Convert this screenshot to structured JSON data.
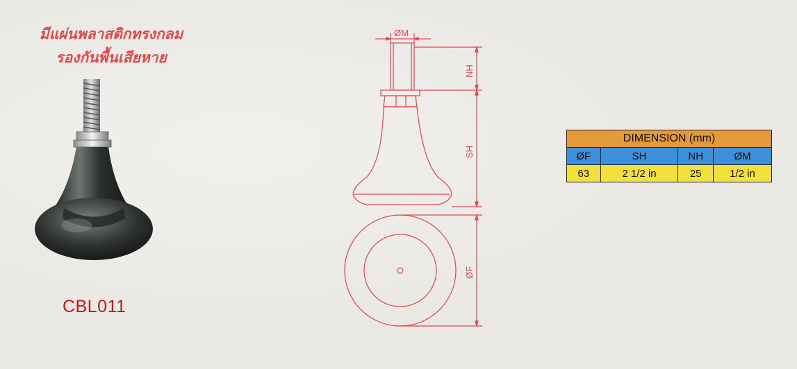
{
  "note": {
    "line1": "มีแผ่นพลาสติกทรงกลม",
    "line2": "รองกันพื้นเสียหาย"
  },
  "product": {
    "code": "CBL011"
  },
  "drawing": {
    "labels": {
      "m": "ØM",
      "nh": "NH",
      "sh": "SH",
      "f": "ØF"
    }
  },
  "dimension_table": {
    "title": "DIMENSION (mm)",
    "headers": [
      "ØF",
      "SH",
      "NH",
      "ØM"
    ],
    "values": [
      "63",
      "2 1/2 in",
      "25",
      "1/2 in"
    ]
  },
  "colors": {
    "line_red": "#e0474e",
    "code_red": "#c8151b",
    "title_orange": "#e49a3b",
    "header_blue": "#3c8fd9",
    "value_yellow": "#f1e13a"
  }
}
